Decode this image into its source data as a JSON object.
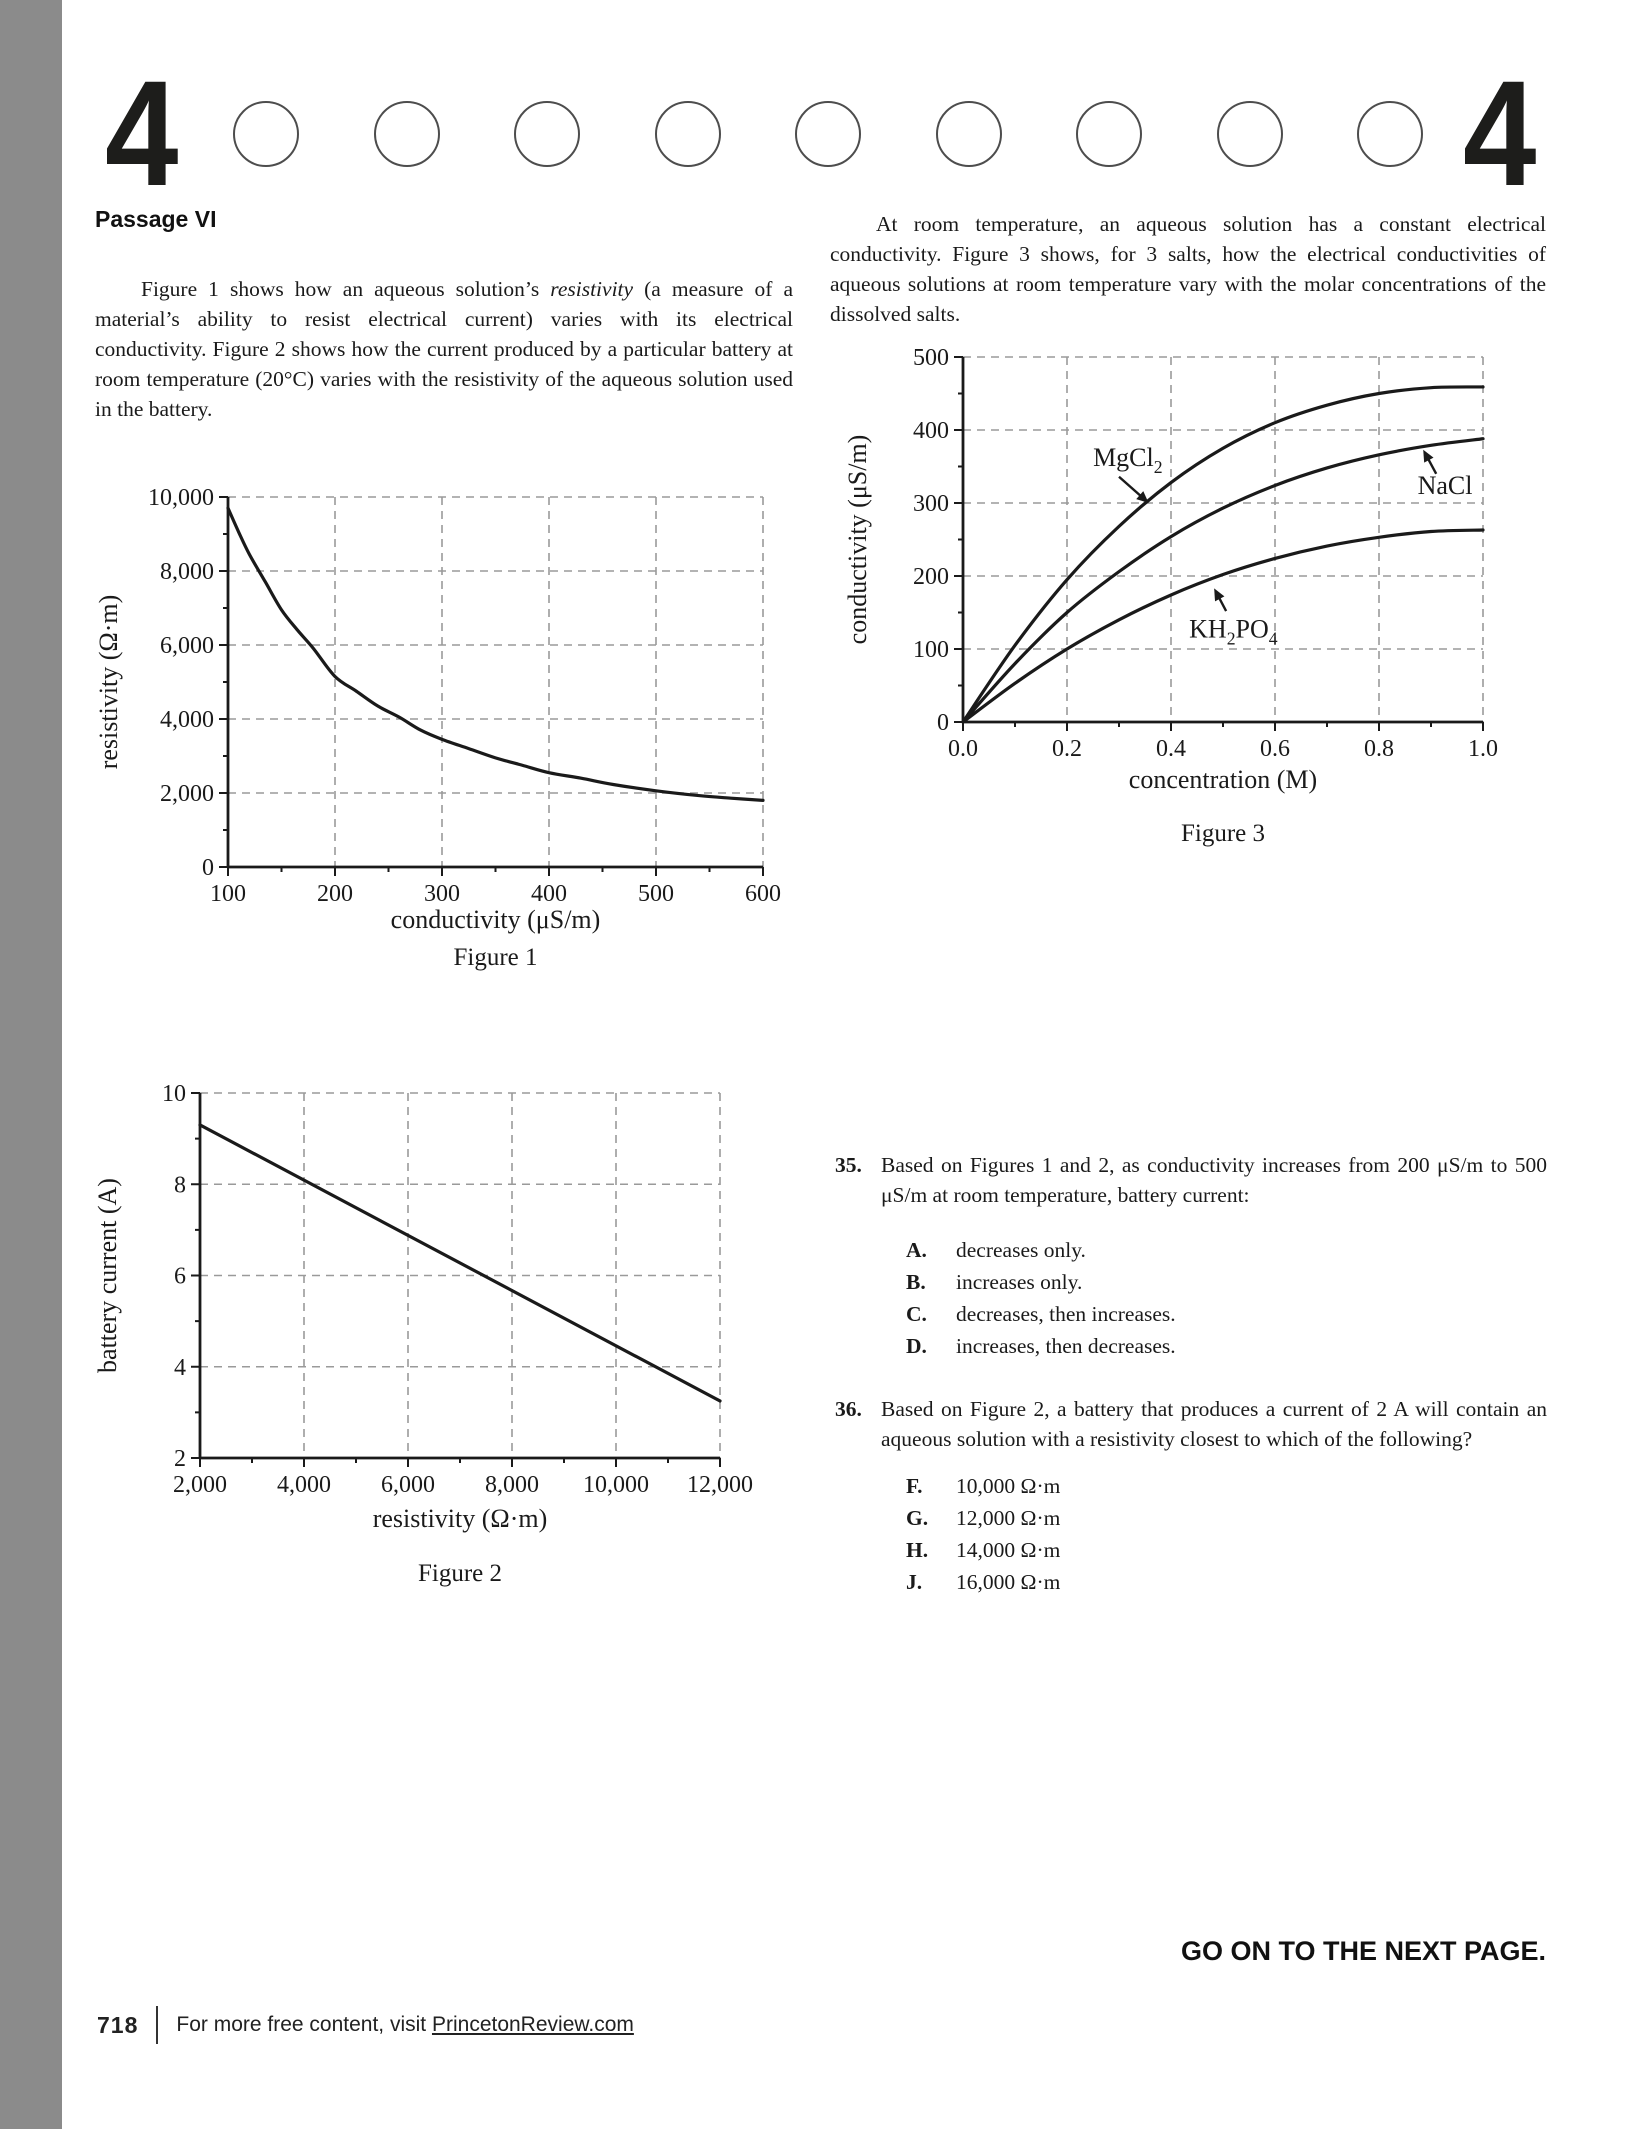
{
  "page": {
    "header": {
      "left_number": "4",
      "right_number": "4",
      "bubble_count": 9
    },
    "passage": {
      "heading": "Passage VI",
      "p1_before": "Figure 1 shows how an aqueous solution’s ",
      "p1_italic": "resistivity",
      "p1_after": " (a measure of a material’s ability to resist electrical current) varies with its electrical conductivity. Figure 2 shows how the current produced by a particular battery at room temperature (20°C) varies with the resistivity of the aqueous solution used in the battery.",
      "p2": "At room temperature, an aqueous solution has a constant electrical conductivity. Figure 3 shows, for 3 salts, how the electrical conductivities of aqueous solutions at room temperature vary with the molar concentrations of the dissolved salts."
    },
    "questions": [
      {
        "number": "35.",
        "text": "Based on Figures 1 and 2, as conductivity increases from 200 μS/m to 500 μS/m at room temperature, battery current:",
        "options": [
          {
            "letter": "A.",
            "text": "decreases only."
          },
          {
            "letter": "B.",
            "text": "increases only."
          },
          {
            "letter": "C.",
            "text": "decreases, then increases."
          },
          {
            "letter": "D.",
            "text": "increases, then decreases."
          }
        ]
      },
      {
        "number": "36.",
        "text": "Based on Figure 2, a battery that produces a current of 2 A will contain an aqueous solution with a resistivity closest to which of the following?",
        "options": [
          {
            "letter": "F.",
            "text": "10,000 Ω·m"
          },
          {
            "letter": "G.",
            "text": "12,000 Ω·m"
          },
          {
            "letter": "H.",
            "text": "14,000 Ω·m"
          },
          {
            "letter": "J.",
            "text": "16,000 Ω·m"
          }
        ]
      }
    ],
    "footer": {
      "page_number": "718",
      "note_before_link": "For more free content, visit ",
      "link": "PrincetonReview.com",
      "go_on": "GO ON TO THE NEXT PAGE."
    }
  },
  "chart_data": [
    {
      "type": "line",
      "title": "Figure 1",
      "xlabel": "conductivity (μS/m)",
      "ylabel": "resistivity (Ω·m)",
      "xlim": [
        100,
        600
      ],
      "ylim": [
        0,
        10000
      ],
      "xticks": [
        100,
        200,
        300,
        400,
        500,
        600
      ],
      "xtick_labels": [
        "100",
        "200",
        "300",
        "400",
        "500",
        "600"
      ],
      "xminor": [
        150,
        250,
        350,
        450,
        550
      ],
      "yticks": [
        0,
        2000,
        4000,
        6000,
        8000,
        10000
      ],
      "ytick_labels": [
        "0",
        "2,000",
        "4,000",
        "6,000",
        "8,000",
        "10,000"
      ],
      "yminor": [
        1000,
        3000,
        5000,
        7000,
        9000
      ],
      "grid_x": [
        200,
        300,
        400,
        500,
        600
      ],
      "grid_y": [
        2000,
        4000,
        6000,
        8000,
        10000
      ],
      "grid": true,
      "legend": false,
      "series": [
        {
          "name": "aqueous solution",
          "points": [
            [
              100,
              9700
            ],
            [
              110,
              9050
            ],
            [
              120,
              8450
            ],
            [
              135,
              7700
            ],
            [
              150,
              6950
            ],
            [
              165,
              6400
            ],
            [
              180,
              5900
            ],
            [
              200,
              5150
            ],
            [
              220,
              4750
            ],
            [
              240,
              4350
            ],
            [
              260,
              4050
            ],
            [
              280,
              3700
            ],
            [
              300,
              3450
            ],
            [
              325,
              3200
            ],
            [
              350,
              2950
            ],
            [
              375,
              2750
            ],
            [
              400,
              2550
            ],
            [
              430,
              2400
            ],
            [
              460,
              2230
            ],
            [
              500,
              2060
            ],
            [
              540,
              1930
            ],
            [
              570,
              1860
            ],
            [
              600,
              1800
            ]
          ]
        }
      ]
    },
    {
      "type": "line",
      "title": "Figure 2",
      "xlabel": "resistivity (Ω·m)",
      "ylabel": "battery current (A)",
      "xlim": [
        2000,
        12000
      ],
      "ylim": [
        2,
        10
      ],
      "xticks": [
        2000,
        4000,
        6000,
        8000,
        10000,
        12000
      ],
      "xtick_labels": [
        "2,000",
        "4,000",
        "6,000",
        "8,000",
        "10,000",
        "12,000"
      ],
      "xminor": [
        3000,
        5000,
        7000,
        9000,
        11000
      ],
      "yticks": [
        2,
        4,
        6,
        8,
        10
      ],
      "ytick_labels": [
        "2",
        "4",
        "6",
        "8",
        "10"
      ],
      "yminor": [
        3,
        5,
        7,
        9
      ],
      "grid_x": [
        4000,
        6000,
        8000,
        10000,
        12000
      ],
      "grid_y": [
        4,
        6,
        8,
        10
      ],
      "grid": true,
      "legend": false,
      "series": [
        {
          "name": "battery current",
          "points": [
            [
              2000,
              9.3
            ],
            [
              12000,
              3.25
            ]
          ]
        }
      ]
    },
    {
      "type": "line",
      "title": "Figure 3",
      "xlabel": "concentration (M)",
      "ylabel": "conductivity (μS/m)",
      "xlim": [
        0,
        1
      ],
      "ylim": [
        0,
        500
      ],
      "xticks": [
        0,
        0.2,
        0.4,
        0.6,
        0.8,
        1.0
      ],
      "xtick_labels": [
        "0.0",
        "0.2",
        "0.4",
        "0.6",
        "0.8",
        "1.0"
      ],
      "xminor": [
        0.1,
        0.3,
        0.5,
        0.7,
        0.9
      ],
      "yticks": [
        0,
        100,
        200,
        300,
        400,
        500
      ],
      "ytick_labels": [
        "0",
        "100",
        "200",
        "300",
        "400",
        "500"
      ],
      "yminor": [
        50,
        150,
        250,
        350,
        450
      ],
      "grid_x": [
        0.2,
        0.4,
        0.6,
        0.8,
        1.0
      ],
      "grid_y": [
        100,
        200,
        300,
        400,
        500
      ],
      "grid": true,
      "legend": false,
      "series": [
        {
          "name": "MgCl_2_",
          "points": [
            [
              0,
              0
            ],
            [
              0.1,
              105
            ],
            [
              0.2,
              195
            ],
            [
              0.3,
              268
            ],
            [
              0.4,
              328
            ],
            [
              0.5,
              375
            ],
            [
              0.6,
              410
            ],
            [
              0.7,
              434
            ],
            [
              0.8,
              450
            ],
            [
              0.9,
              458
            ],
            [
              1,
              459
            ]
          ]
        },
        {
          "name": "NaCl",
          "points": [
            [
              0,
              0
            ],
            [
              0.1,
              80
            ],
            [
              0.2,
              150
            ],
            [
              0.3,
              206
            ],
            [
              0.4,
              254
            ],
            [
              0.5,
              293
            ],
            [
              0.6,
              324
            ],
            [
              0.7,
              348
            ],
            [
              0.8,
              366
            ],
            [
              0.9,
              379
            ],
            [
              1,
              388
            ]
          ]
        },
        {
          "name": "KH_2_PO_4_",
          "points": [
            [
              0,
              0
            ],
            [
              0.1,
              53
            ],
            [
              0.2,
              100
            ],
            [
              0.3,
              140
            ],
            [
              0.4,
              174
            ],
            [
              0.5,
              202
            ],
            [
              0.6,
              224
            ],
            [
              0.7,
              241
            ],
            [
              0.8,
              253
            ],
            [
              0.9,
              261
            ],
            [
              1,
              263
            ]
          ]
        }
      ],
      "annotations": [
        {
          "text": "MgCl_2_",
          "tx": 0.317,
          "ty": 363,
          "fx": 0.3,
          "fy": 336,
          "ax": 0.357,
          "ay": 300
        },
        {
          "text": "NaCl",
          "tx": 0.927,
          "ty": 325,
          "fx": 0.91,
          "fy": 340,
          "ax": 0.885,
          "ay": 373
        },
        {
          "text": "KH_2_PO_4_",
          "tx": 0.52,
          "ty": 128,
          "fx": 0.506,
          "fy": 152,
          "ax": 0.483,
          "ay": 183
        }
      ]
    }
  ]
}
